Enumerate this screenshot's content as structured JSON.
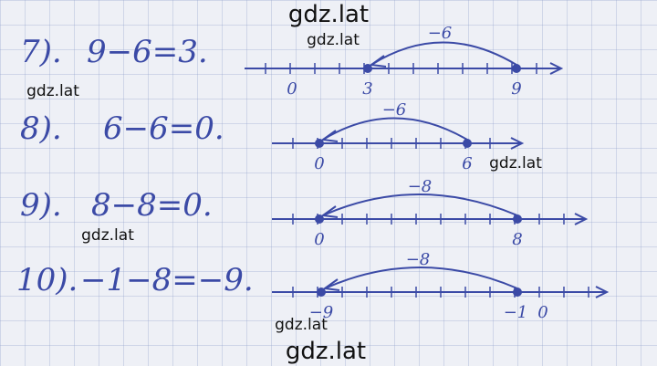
{
  "watermarks": [
    "gdz.lat",
    "gdz.lat",
    "gdz.lat",
    "gdz.lat",
    "gdz.lat",
    "gdz.lat",
    "gdz.lat"
  ],
  "problems": [
    {
      "number": "7).",
      "equation": "9−6=3.",
      "arc_label": "−6",
      "axis_labels": [
        "0",
        "3",
        "9"
      ]
    },
    {
      "number": "8).",
      "equation": "6−6=0.",
      "arc_label": "−6",
      "axis_labels": [
        "0",
        "6"
      ]
    },
    {
      "number": "9).",
      "equation": "8−8=0.",
      "arc_label": "−8",
      "axis_labels": [
        "0",
        "8"
      ]
    },
    {
      "number": "10).",
      "equation": "−1−8=−9.",
      "arc_label": "−8",
      "axis_labels": [
        "−9",
        "−1",
        "0"
      ]
    }
  ]
}
